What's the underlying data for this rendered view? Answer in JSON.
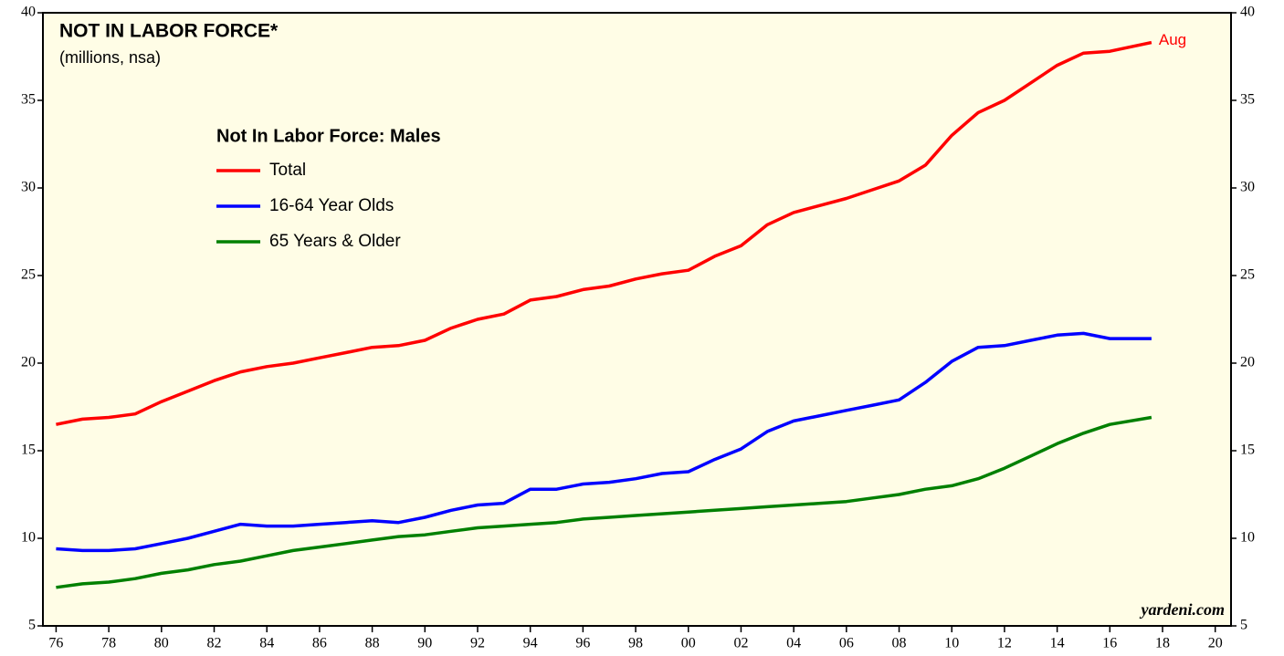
{
  "chart_data": {
    "type": "line",
    "title": "NOT IN LABOR FORCE*",
    "subtitle": "(millions, nsa)",
    "legend_title": "Not In Labor Force: Males",
    "end_label": "Aug",
    "source": "yardeni.com",
    "x": [
      1976,
      1977,
      1978,
      1979,
      1980,
      1981,
      1982,
      1983,
      1984,
      1985,
      1986,
      1987,
      1988,
      1989,
      1990,
      1991,
      1992,
      1993,
      1994,
      1995,
      1996,
      1997,
      1998,
      1999,
      2000,
      2001,
      2002,
      2003,
      2004,
      2005,
      2006,
      2007,
      2008,
      2009,
      2010,
      2011,
      2012,
      2013,
      2014,
      2015,
      2016,
      2017.58
    ],
    "series": [
      {
        "name": "Total",
        "color": "#ff0000",
        "values": [
          16.5,
          16.8,
          16.9,
          17.1,
          17.8,
          18.4,
          19.0,
          19.5,
          19.8,
          20.0,
          20.3,
          20.6,
          20.9,
          21.0,
          21.3,
          22.0,
          22.5,
          22.8,
          23.6,
          23.8,
          24.2,
          24.4,
          24.8,
          25.1,
          25.3,
          26.1,
          26.7,
          27.9,
          28.6,
          29.0,
          29.4,
          29.9,
          30.4,
          31.3,
          33.0,
          34.3,
          35.0,
          36.0,
          37.0,
          37.7,
          37.8,
          38.3
        ]
      },
      {
        "name": "16-64 Year Olds",
        "color": "#0000ff",
        "values": [
          9.4,
          9.3,
          9.3,
          9.4,
          9.7,
          10.0,
          10.4,
          10.8,
          10.7,
          10.7,
          10.8,
          10.9,
          11.0,
          10.9,
          11.2,
          11.6,
          11.9,
          12.0,
          12.8,
          12.8,
          13.1,
          13.2,
          13.4,
          13.7,
          13.8,
          14.5,
          15.1,
          16.1,
          16.7,
          17.0,
          17.3,
          17.6,
          17.9,
          18.9,
          20.1,
          20.9,
          21.0,
          21.3,
          21.6,
          21.7,
          21.4,
          21.4
        ]
      },
      {
        "name": "65 Years & Older",
        "color": "#008000",
        "values": [
          7.2,
          7.4,
          7.5,
          7.7,
          8.0,
          8.2,
          8.5,
          8.7,
          9.0,
          9.3,
          9.5,
          9.7,
          9.9,
          10.1,
          10.2,
          10.4,
          10.6,
          10.7,
          10.8,
          10.9,
          11.1,
          11.2,
          11.3,
          11.4,
          11.5,
          11.6,
          11.7,
          11.8,
          11.9,
          12.0,
          12.1,
          12.3,
          12.5,
          12.8,
          13.0,
          13.4,
          14.0,
          14.7,
          15.4,
          16.0,
          16.5,
          16.9
        ]
      }
    ],
    "xlim": [
      1975.5,
      2020.6
    ],
    "xticks": [
      {
        "value": 1976,
        "label": "76"
      },
      {
        "value": 1978,
        "label": "78"
      },
      {
        "value": 1980,
        "label": "80"
      },
      {
        "value": 1982,
        "label": "82"
      },
      {
        "value": 1984,
        "label": "84"
      },
      {
        "value": 1986,
        "label": "86"
      },
      {
        "value": 1988,
        "label": "88"
      },
      {
        "value": 1990,
        "label": "90"
      },
      {
        "value": 1992,
        "label": "92"
      },
      {
        "value": 1994,
        "label": "94"
      },
      {
        "value": 1996,
        "label": "96"
      },
      {
        "value": 1998,
        "label": "98"
      },
      {
        "value": 2000,
        "label": "00"
      },
      {
        "value": 2002,
        "label": "02"
      },
      {
        "value": 2004,
        "label": "04"
      },
      {
        "value": 2006,
        "label": "06"
      },
      {
        "value": 2008,
        "label": "08"
      },
      {
        "value": 2010,
        "label": "10"
      },
      {
        "value": 2012,
        "label": "12"
      },
      {
        "value": 2014,
        "label": "14"
      },
      {
        "value": 2016,
        "label": "16"
      },
      {
        "value": 2018,
        "label": "18"
      },
      {
        "value": 2020,
        "label": "20"
      }
    ],
    "ylim": [
      5,
      40
    ],
    "yticks": [
      5,
      10,
      15,
      20,
      25,
      30,
      35,
      40
    ],
    "y2lim": [
      5,
      40
    ],
    "y2ticks": [
      5,
      10,
      15,
      20,
      25,
      30,
      35,
      40
    ]
  }
}
